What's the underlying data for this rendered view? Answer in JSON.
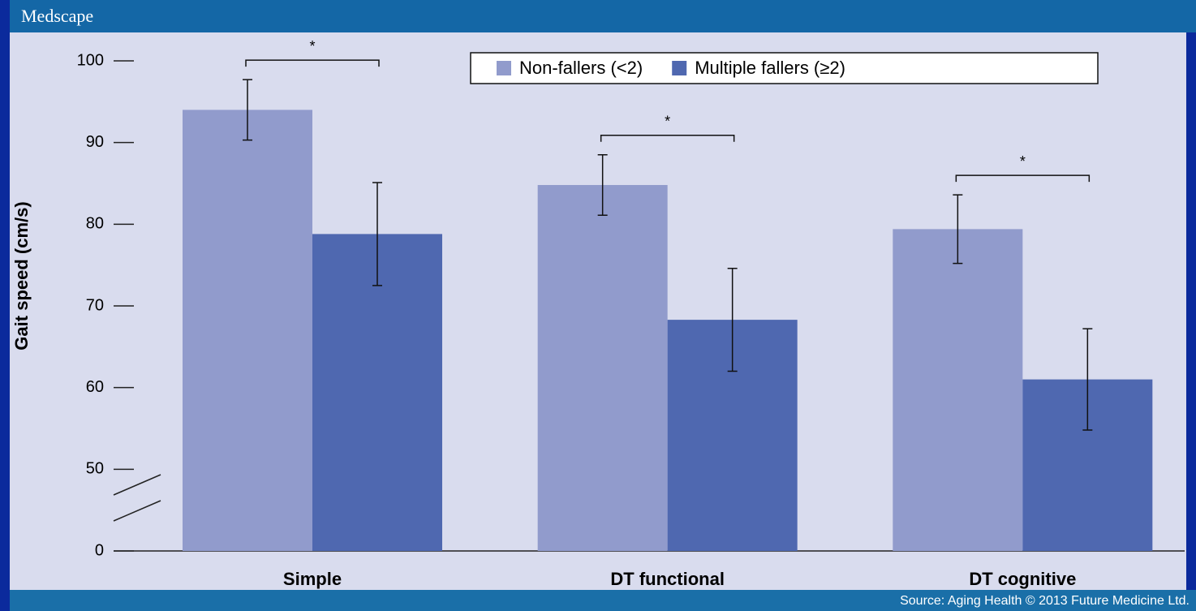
{
  "brand": "Medscape",
  "source": "Source: Aging Health © 2013 Future Medicine Ltd.",
  "chart_data": {
    "type": "bar",
    "y_label": "Gait speed (cm/s)",
    "categories": [
      "Simple",
      "DT functional",
      "DT cognitive"
    ],
    "series": [
      {
        "name": "Non-fallers (<2)",
        "color": "#919bcc",
        "values": [
          94,
          84.8,
          79.4
        ],
        "errors": [
          3.7,
          3.7,
          4.2
        ]
      },
      {
        "name": "Multiple fallers (≥2)",
        "color": "#4f68b0",
        "values": [
          78.8,
          68.3,
          61
        ],
        "errors": [
          6.3,
          6.3,
          6.2
        ]
      }
    ],
    "significance": [
      "*",
      "*",
      "*"
    ],
    "ylim": [
      0,
      100
    ],
    "axis_break": [
      0,
      50
    ],
    "yticks": [
      0,
      50,
      60,
      70,
      80,
      90,
      100
    ],
    "legend": "top-right"
  }
}
